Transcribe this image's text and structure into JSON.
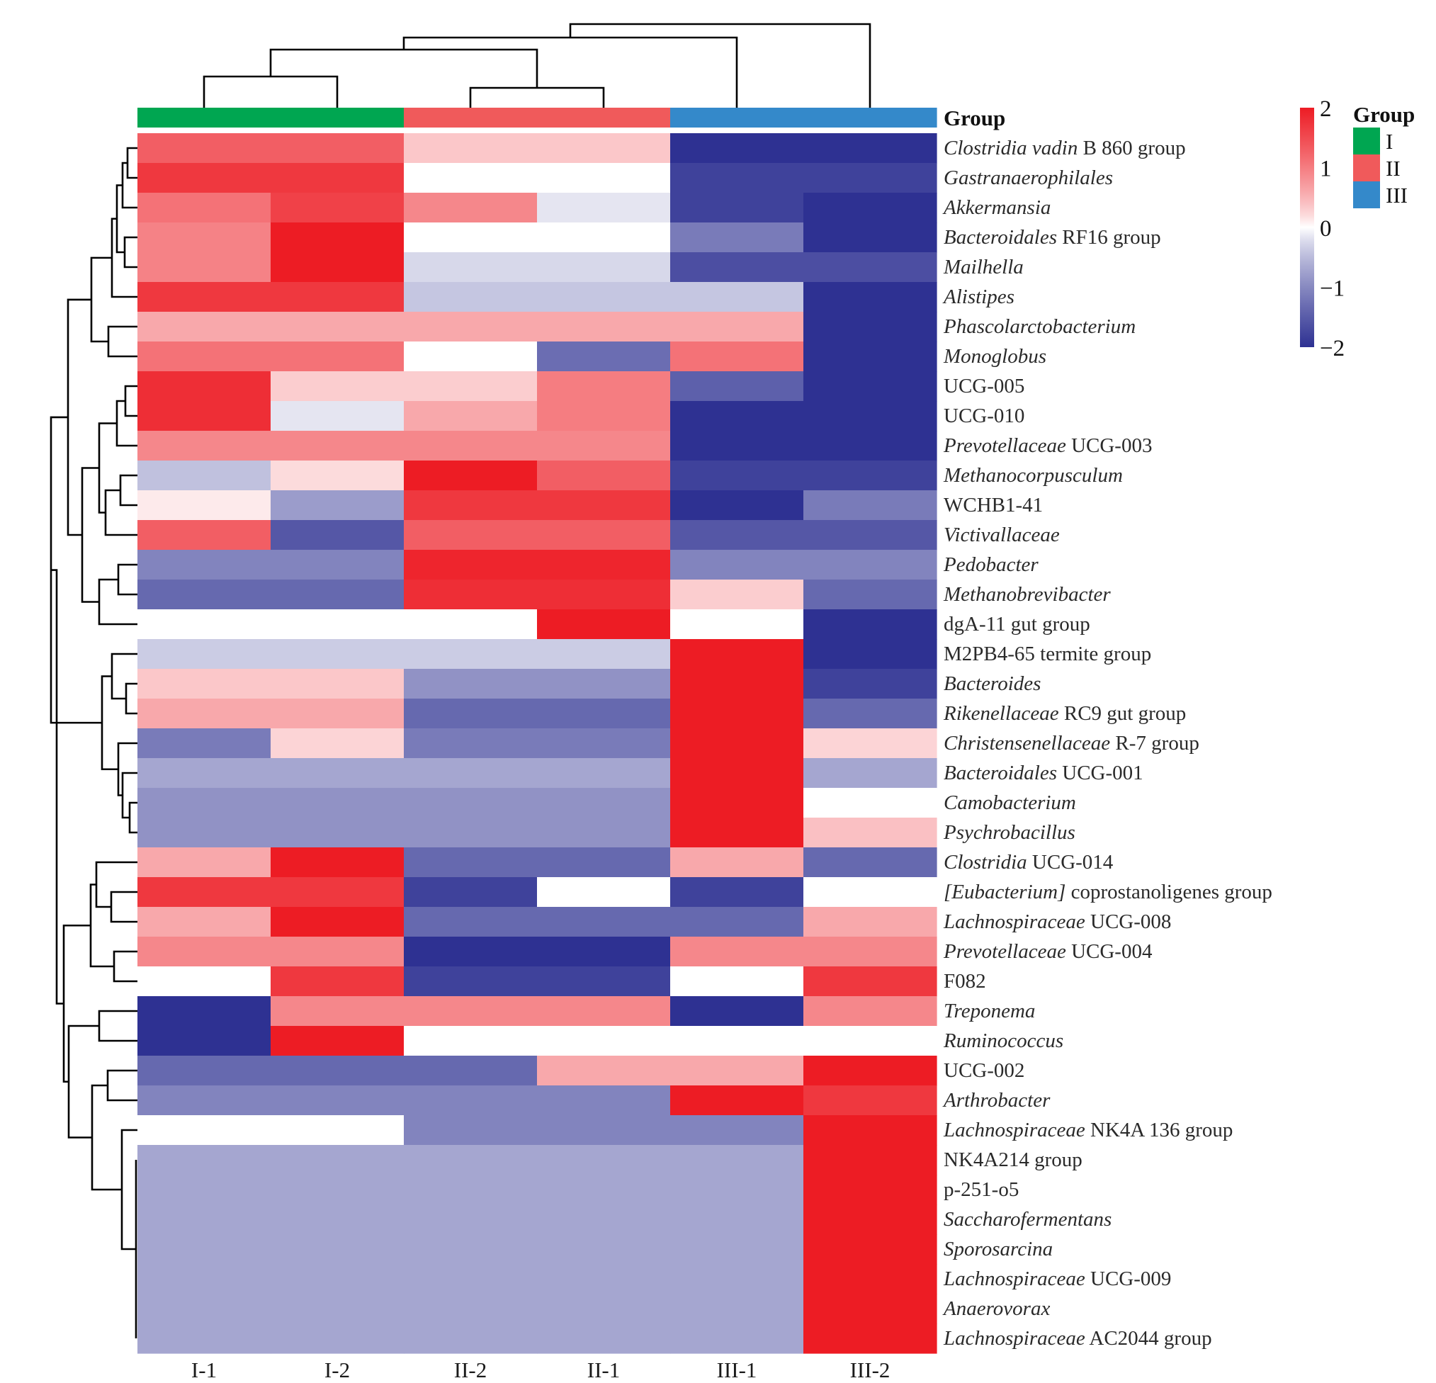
{
  "chart_data": {
    "type": "heatmap",
    "title": "",
    "columns": [
      "I-1",
      "I-2",
      "II-2",
      "II-1",
      "III-1",
      "III-2"
    ],
    "column_groups": [
      "I",
      "I",
      "II",
      "II",
      "III",
      "III"
    ],
    "annotation_label": "Group",
    "groups": [
      {
        "name": "I",
        "color": "#00A651"
      },
      {
        "name": "II",
        "color": "#F05A5B"
      },
      {
        "name": "III",
        "color": "#3489CA"
      }
    ],
    "colorbar": {
      "min": -2,
      "max": 2,
      "ticks": [
        "2",
        "1",
        "0",
        "−1",
        "−2"
      ],
      "tick_values": [
        2,
        1,
        0,
        -1,
        -2
      ],
      "colors": {
        "low": "#2E3192",
        "mid": "#FFFFFF",
        "high": "#ED1C24"
      }
    },
    "rows": [
      {
        "italic": "Clostridia vadin",
        "plain": " B 860 group",
        "values": [
          1.3,
          1.3,
          0.35,
          0.35,
          -2.0,
          -2.0
        ]
      },
      {
        "italic": "Gastranaerophilales",
        "plain": "",
        "values": [
          1.7,
          1.7,
          0.0,
          0.0,
          -1.8,
          -1.8
        ]
      },
      {
        "italic": "Akkermansia",
        "plain": "",
        "values": [
          1.1,
          1.6,
          0.9,
          -0.15,
          -1.8,
          -2.0
        ]
      },
      {
        "italic": "Bacteroidales",
        "plain": " RF16 group",
        "values": [
          0.95,
          2.0,
          0.0,
          0.0,
          -1.15,
          -2.0
        ]
      },
      {
        "italic": "Mailhella",
        "plain": "",
        "values": [
          0.95,
          2.0,
          -0.25,
          -0.25,
          -1.65,
          -1.65
        ]
      },
      {
        "italic": "Alistipes",
        "plain": "",
        "values": [
          1.7,
          1.7,
          -0.4,
          -0.4,
          -0.4,
          -2.0
        ]
      },
      {
        "italic": "Phascolarctobacterium",
        "plain": "",
        "values": [
          0.6,
          0.6,
          0.6,
          0.6,
          0.6,
          -2.0
        ]
      },
      {
        "italic": "Monoglobus",
        "plain": "",
        "values": [
          1.1,
          1.1,
          0.0,
          -1.3,
          1.1,
          -2.0
        ]
      },
      {
        "italic": "",
        "plain": "UCG-005",
        "values": [
          1.8,
          0.3,
          0.3,
          1.0,
          -1.45,
          -2.0
        ]
      },
      {
        "italic": "",
        "plain": "UCG-010",
        "values": [
          1.8,
          -0.15,
          0.6,
          1.0,
          -2.0,
          -2.0
        ]
      },
      {
        "italic": "Prevotellaceae",
        "plain": " UCG-003",
        "values": [
          0.9,
          0.9,
          0.9,
          0.9,
          -2.0,
          -2.0
        ]
      },
      {
        "italic": "Methanocorpusculum",
        "plain": "",
        "values": [
          -0.45,
          0.2,
          2.0,
          1.3,
          -1.8,
          -1.8
        ]
      },
      {
        "italic": "",
        "plain": "WCHB1-41",
        "values": [
          0.1,
          -0.8,
          1.7,
          1.7,
          -2.0,
          -1.15
        ]
      },
      {
        "italic": "Victivallaceae",
        "plain": "",
        "values": [
          1.3,
          -1.55,
          1.3,
          1.3,
          -1.55,
          -1.55
        ]
      },
      {
        "italic": "Pedobacter",
        "plain": "",
        "values": [
          -1.05,
          -1.05,
          1.9,
          1.9,
          -1.05,
          -1.05
        ]
      },
      {
        "italic": "Methanobrevibacter",
        "plain": "",
        "values": [
          -1.35,
          -1.35,
          1.8,
          1.8,
          0.3,
          -1.35
        ]
      },
      {
        "italic": "",
        "plain": "dgA-11 gut group",
        "values": [
          0.0,
          0.0,
          0.0,
          2.0,
          0.0,
          -2.0
        ]
      },
      {
        "italic": "",
        "plain": "M2PB4-65 termite group",
        "values": [
          -0.35,
          -0.35,
          -0.35,
          -0.35,
          2.0,
          -2.0
        ]
      },
      {
        "italic": "Bacteroides",
        "plain": "",
        "values": [
          0.35,
          0.35,
          -0.9,
          -0.9,
          2.0,
          -1.8
        ]
      },
      {
        "italic": "Rikenellaceae",
        "plain": " RC9 gut group",
        "values": [
          0.6,
          0.6,
          -1.35,
          -1.35,
          2.0,
          -1.35
        ]
      },
      {
        "italic": "Christensenellaceae",
        "plain": " R-7 group",
        "values": [
          -1.15,
          0.25,
          -1.15,
          -1.15,
          2.0,
          0.25
        ]
      },
      {
        "italic": "Bacteroidales",
        "plain": " UCG-001",
        "values": [
          -0.7,
          -0.7,
          -0.7,
          -0.7,
          2.0,
          -0.7
        ]
      },
      {
        "italic": "Camobacterium",
        "plain": "",
        "values": [
          -0.9,
          -0.9,
          -0.9,
          -0.9,
          2.0,
          0.0
        ]
      },
      {
        "italic": "Psychrobacillus",
        "plain": "",
        "values": [
          -0.9,
          -0.9,
          -0.9,
          -0.9,
          2.0,
          0.4
        ]
      },
      {
        "italic": "Clostridia",
        "plain": " UCG-014",
        "values": [
          0.6,
          2.0,
          -1.35,
          -1.35,
          0.6,
          -1.35
        ]
      },
      {
        "italic": "[Eubacterium]",
        "plain": " coprostanoligenes group",
        "values": [
          1.7,
          1.7,
          -1.8,
          0.0,
          -1.8,
          0.0
        ]
      },
      {
        "italic": "Lachnospiraceae",
        "plain": " UCG-008",
        "values": [
          0.6,
          2.0,
          -1.35,
          -1.35,
          -1.35,
          0.6
        ]
      },
      {
        "italic": "Prevotellaceae",
        "plain": " UCG-004",
        "values": [
          0.9,
          0.9,
          -2.0,
          -2.0,
          0.9,
          0.9
        ]
      },
      {
        "italic": "",
        "plain": "F082",
        "values": [
          0.0,
          1.7,
          -1.8,
          -1.8,
          0.0,
          1.7
        ]
      },
      {
        "italic": "Treponema",
        "plain": "",
        "values": [
          -2.0,
          0.9,
          0.9,
          0.9,
          -2.0,
          0.9
        ]
      },
      {
        "italic": "Ruminococcus",
        "plain": "",
        "values": [
          -2.0,
          2.0,
          0.0,
          0.0,
          0.0,
          0.0
        ]
      },
      {
        "italic": "",
        "plain": "UCG-002",
        "values": [
          -1.35,
          -1.35,
          -1.35,
          0.6,
          0.6,
          2.0
        ]
      },
      {
        "italic": "Arthrobacter",
        "plain": "",
        "values": [
          -1.05,
          -1.05,
          -1.05,
          -1.05,
          2.0,
          1.7
        ]
      },
      {
        "italic": "Lachnospiraceae",
        "plain": " NK4A 136  group",
        "values": [
          0.0,
          0.0,
          -1.05,
          -1.05,
          -1.05,
          2.0
        ]
      },
      {
        "italic": "",
        "plain": "NK4A214 group",
        "values": [
          -0.7,
          -0.7,
          -0.7,
          -0.7,
          -0.7,
          2.0
        ]
      },
      {
        "italic": "",
        "plain": "p-251-o5",
        "values": [
          -0.7,
          -0.7,
          -0.7,
          -0.7,
          -0.7,
          2.0
        ]
      },
      {
        "italic": "Saccharofermentans",
        "plain": "",
        "values": [
          -0.7,
          -0.7,
          -0.7,
          -0.7,
          -0.7,
          2.0
        ]
      },
      {
        "italic": "Sporosarcina",
        "plain": "",
        "values": [
          -0.7,
          -0.7,
          -0.7,
          -0.7,
          -0.7,
          2.0
        ]
      },
      {
        "italic": "Lachnospiraceae",
        "plain": " UCG-009",
        "values": [
          -0.7,
          -0.7,
          -0.7,
          -0.7,
          -0.7,
          2.0
        ]
      },
      {
        "italic": "Anaerovorax",
        "plain": "",
        "values": [
          -0.7,
          -0.7,
          -0.7,
          -0.7,
          -0.7,
          2.0
        ]
      },
      {
        "italic": "Lachnospiraceae",
        "plain": " AC2044 group",
        "values": [
          -0.7,
          -0.7,
          -0.7,
          -0.7,
          -0.7,
          2.0
        ]
      }
    ],
    "column_dendrogram": "((I-1,I-2),(II-2,II-1)),III-1),III-2",
    "row_dendrogram": true,
    "legend_placement": "top-right"
  }
}
